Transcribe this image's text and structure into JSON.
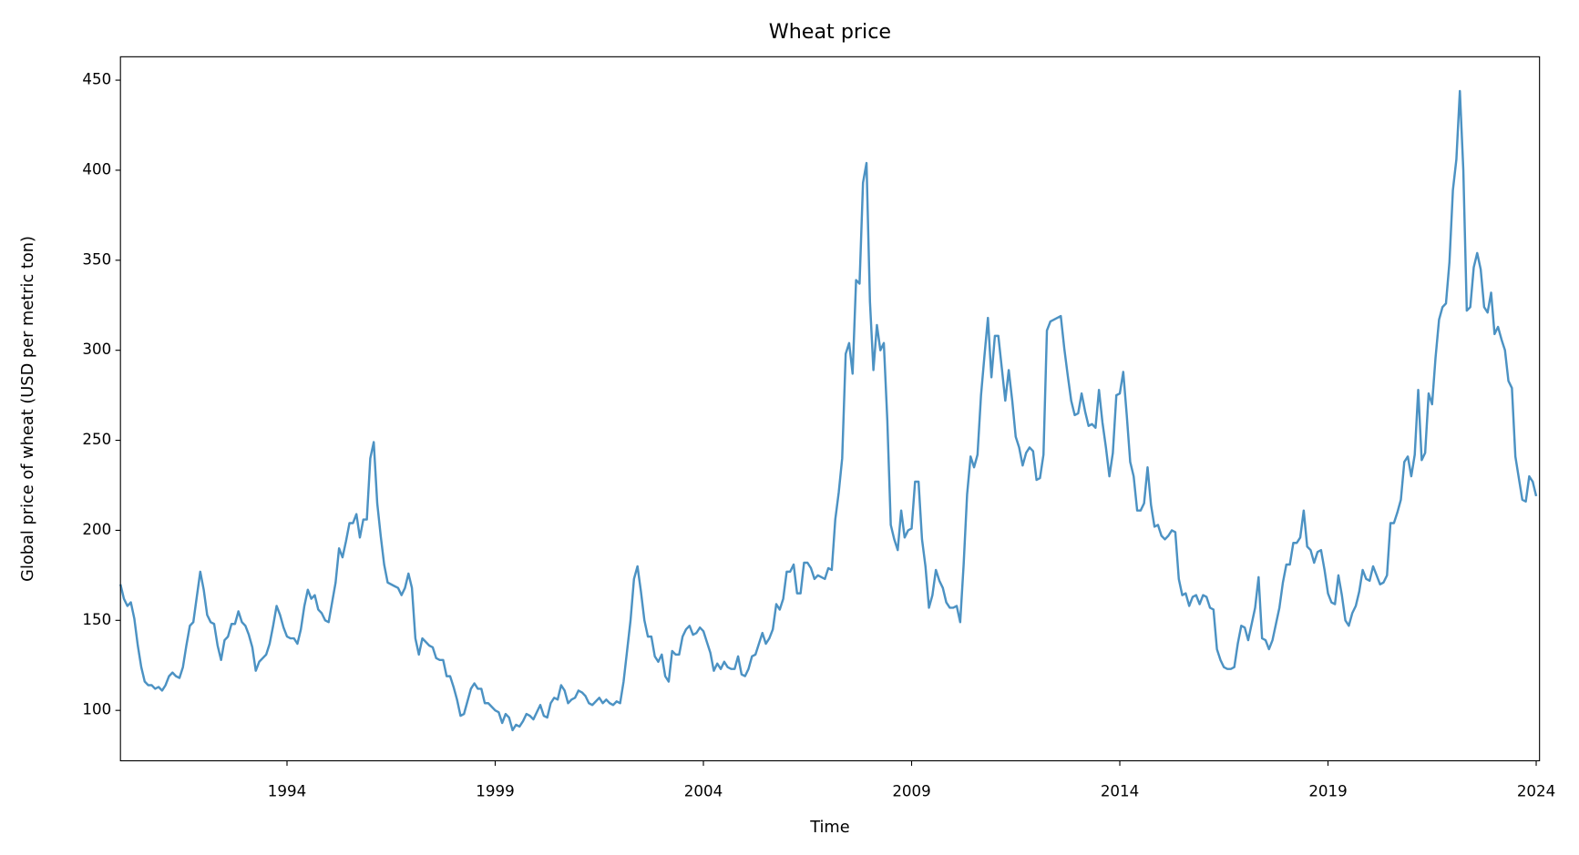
{
  "chart_data": {
    "type": "line",
    "title": "Wheat price",
    "x_label": "Time",
    "y_label": "Global price of wheat (USD per metric ton)",
    "xlim": [
      1990,
      2024.08
    ],
    "ylim": [
      72,
      463
    ],
    "xticks": [
      1994,
      1999,
      2004,
      2009,
      2014,
      2019,
      2024
    ],
    "yticks": [
      100,
      150,
      200,
      250,
      300,
      350,
      400,
      450
    ],
    "grid": false,
    "x": [
      1990,
      1990.083,
      1990.167,
      1990.25,
      1990.333,
      1990.417,
      1990.5,
      1990.583,
      1990.667,
      1990.75,
      1990.833,
      1990.917,
      1991,
      1991.083,
      1991.167,
      1991.25,
      1991.333,
      1991.417,
      1991.5,
      1991.583,
      1991.667,
      1991.75,
      1991.833,
      1991.917,
      1992,
      1992.083,
      1992.167,
      1992.25,
      1992.333,
      1992.417,
      1992.5,
      1992.583,
      1992.667,
      1992.75,
      1992.833,
      1992.917,
      1993,
      1993.083,
      1993.167,
      1993.25,
      1993.333,
      1993.417,
      1993.5,
      1993.583,
      1993.667,
      1993.75,
      1993.833,
      1993.917,
      1994,
      1994.083,
      1994.167,
      1994.25,
      1994.333,
      1994.417,
      1994.5,
      1994.583,
      1994.667,
      1994.75,
      1994.833,
      1994.917,
      1995,
      1995.083,
      1995.167,
      1995.25,
      1995.333,
      1995.417,
      1995.5,
      1995.583,
      1995.667,
      1995.75,
      1995.833,
      1995.917,
      1996,
      1996.083,
      1996.167,
      1996.25,
      1996.333,
      1996.417,
      1996.5,
      1996.583,
      1996.667,
      1996.75,
      1996.833,
      1996.917,
      1997,
      1997.083,
      1997.167,
      1997.25,
      1997.333,
      1997.417,
      1997.5,
      1997.583,
      1997.667,
      1997.75,
      1997.833,
      1997.917,
      1998,
      1998.083,
      1998.167,
      1998.25,
      1998.333,
      1998.417,
      1998.5,
      1998.583,
      1998.667,
      1998.75,
      1998.833,
      1998.917,
      1999,
      1999.083,
      1999.167,
      1999.25,
      1999.333,
      1999.417,
      1999.5,
      1999.583,
      1999.667,
      1999.75,
      1999.833,
      1999.917,
      2000,
      2000.083,
      2000.167,
      2000.25,
      2000.333,
      2000.417,
      2000.5,
      2000.583,
      2000.667,
      2000.75,
      2000.833,
      2000.917,
      2001,
      2001.083,
      2001.167,
      2001.25,
      2001.333,
      2001.417,
      2001.5,
      2001.583,
      2001.667,
      2001.75,
      2001.833,
      2001.917,
      2002,
      2002.083,
      2002.167,
      2002.25,
      2002.333,
      2002.417,
      2002.5,
      2002.583,
      2002.667,
      2002.75,
      2002.833,
      2002.917,
      2003,
      2003.083,
      2003.167,
      2003.25,
      2003.333,
      2003.417,
      2003.5,
      2003.583,
      2003.667,
      2003.75,
      2003.833,
      2003.917,
      2004,
      2004.083,
      2004.167,
      2004.25,
      2004.333,
      2004.417,
      2004.5,
      2004.583,
      2004.667,
      2004.75,
      2004.833,
      2004.917,
      2005,
      2005.083,
      2005.167,
      2005.25,
      2005.333,
      2005.417,
      2005.5,
      2005.583,
      2005.667,
      2005.75,
      2005.833,
      2005.917,
      2006,
      2006.083,
      2006.167,
      2006.25,
      2006.333,
      2006.417,
      2006.5,
      2006.583,
      2006.667,
      2006.75,
      2006.833,
      2006.917,
      2007,
      2007.083,
      2007.167,
      2007.25,
      2007.333,
      2007.417,
      2007.5,
      2007.583,
      2007.667,
      2007.75,
      2007.833,
      2007.917,
      2008,
      2008.083,
      2008.167,
      2008.25,
      2008.333,
      2008.417,
      2008.5,
      2008.583,
      2008.667,
      2008.75,
      2008.833,
      2008.917,
      2009,
      2009.083,
      2009.167,
      2009.25,
      2009.333,
      2009.417,
      2009.5,
      2009.583,
      2009.667,
      2009.75,
      2009.833,
      2009.917,
      2010,
      2010.083,
      2010.167,
      2010.25,
      2010.333,
      2010.417,
      2010.5,
      2010.583,
      2010.667,
      2010.75,
      2010.833,
      2010.917,
      2011,
      2011.083,
      2011.167,
      2011.25,
      2011.333,
      2011.417,
      2011.5,
      2011.583,
      2011.667,
      2011.75,
      2011.833,
      2011.917,
      2012,
      2012.083,
      2012.167,
      2012.25,
      2012.333,
      2012.417,
      2012.5,
      2012.583,
      2012.667,
      2012.75,
      2012.833,
      2012.917,
      2013,
      2013.083,
      2013.167,
      2013.25,
      2013.333,
      2013.417,
      2013.5,
      2013.583,
      2013.667,
      2013.75,
      2013.833,
      2013.917,
      2014,
      2014.083,
      2014.167,
      2014.25,
      2014.333,
      2014.417,
      2014.5,
      2014.583,
      2014.667,
      2014.75,
      2014.833,
      2014.917,
      2015,
      2015.083,
      2015.167,
      2015.25,
      2015.333,
      2015.417,
      2015.5,
      2015.583,
      2015.667,
      2015.75,
      2015.833,
      2015.917,
      2016,
      2016.083,
      2016.167,
      2016.25,
      2016.333,
      2016.417,
      2016.5,
      2016.583,
      2016.667,
      2016.75,
      2016.833,
      2016.917,
      2017,
      2017.083,
      2017.167,
      2017.25,
      2017.333,
      2017.417,
      2017.5,
      2017.583,
      2017.667,
      2017.75,
      2017.833,
      2017.917,
      2018,
      2018.083,
      2018.167,
      2018.25,
      2018.333,
      2018.417,
      2018.5,
      2018.583,
      2018.667,
      2018.75,
      2018.833,
      2018.917,
      2019,
      2019.083,
      2019.167,
      2019.25,
      2019.333,
      2019.417,
      2019.5,
      2019.583,
      2019.667,
      2019.75,
      2019.833,
      2019.917,
      2020,
      2020.083,
      2020.167,
      2020.25,
      2020.333,
      2020.417,
      2020.5,
      2020.583,
      2020.667,
      2020.75,
      2020.833,
      2020.917,
      2021,
      2021.083,
      2021.167,
      2021.25,
      2021.333,
      2021.417,
      2021.5,
      2021.583,
      2021.667,
      2021.75,
      2021.833,
      2021.917,
      2022,
      2022.083,
      2022.167,
      2022.25,
      2022.333,
      2022.417,
      2022.5,
      2022.583,
      2022.667,
      2022.75,
      2022.833,
      2022.917,
      2023,
      2023.083,
      2023.167,
      2023.25,
      2023.333,
      2023.417,
      2023.5,
      2023.583,
      2023.667,
      2023.75,
      2023.833,
      2023.917,
      2024
    ],
    "series": [
      {
        "color": "#1f77b4",
        "values": [
          170,
          162,
          158,
          160,
          151,
          136,
          124,
          116,
          114,
          114,
          112,
          113,
          111,
          114,
          119,
          121,
          119,
          118,
          124,
          136,
          147,
          149,
          163,
          177,
          167,
          153,
          149,
          148,
          136,
          128,
          139,
          141,
          148,
          148,
          155,
          149,
          147,
          142,
          135,
          122,
          127,
          129,
          131,
          137,
          147,
          158,
          153,
          146,
          141,
          140,
          140,
          137,
          145,
          158,
          167,
          162,
          164,
          156,
          154,
          150,
          149,
          160,
          171,
          190,
          185,
          194,
          204,
          204,
          209,
          196,
          206,
          206,
          240,
          249,
          215,
          197,
          181,
          171,
          170,
          169,
          168,
          164,
          168,
          176,
          168,
          140,
          131,
          140,
          138,
          136,
          135,
          129,
          128,
          128,
          119,
          119,
          113,
          106,
          97,
          98,
          105,
          112,
          115,
          112,
          112,
          104,
          104,
          102,
          100,
          99,
          93,
          98,
          96,
          89,
          92,
          91,
          94,
          98,
          97,
          95,
          99,
          103,
          97,
          96,
          104,
          107,
          106,
          114,
          111,
          104,
          106,
          107,
          111,
          110,
          108,
          104,
          103,
          105,
          107,
          104,
          106,
          104,
          103,
          105,
          104,
          116,
          133,
          150,
          173,
          180,
          166,
          150,
          141,
          141,
          130,
          127,
          131,
          119,
          116,
          133,
          131,
          131,
          141,
          145,
          147,
          142,
          143,
          146,
          144,
          138,
          132,
          122,
          126,
          123,
          127,
          124,
          123,
          123,
          130,
          120,
          119,
          123,
          130,
          131,
          137,
          143,
          137,
          140,
          145,
          159,
          156,
          162,
          177,
          177,
          181,
          165,
          165,
          182,
          182,
          179,
          173,
          175,
          174,
          173,
          179,
          178,
          206,
          221,
          240,
          298,
          304,
          287,
          339,
          337,
          393,
          404,
          327,
          289,
          314,
          300,
          304,
          261,
          203,
          195,
          189,
          211,
          196,
          200,
          201,
          227,
          227,
          195,
          180,
          157,
          164,
          178,
          172,
          168,
          160,
          157,
          157,
          158,
          149,
          181,
          220,
          241,
          235,
          242,
          275,
          297,
          318,
          285,
          308,
          308,
          290,
          272,
          289,
          272,
          252,
          246,
          236,
          243,
          246,
          244,
          228,
          229,
          242,
          311,
          316,
          317,
          318,
          319,
          301,
          286,
          272,
          264,
          265,
          276,
          266,
          258,
          259,
          257,
          278,
          260,
          246,
          230,
          243,
          275,
          276,
          288,
          264,
          238,
          230,
          211,
          211,
          215,
          235,
          214,
          202,
          203,
          197,
          195,
          197,
          200,
          199,
          173,
          164,
          165,
          158,
          163,
          164,
          159,
          164,
          163,
          157,
          156,
          134,
          128,
          124,
          123,
          123,
          124,
          137,
          147,
          146,
          139,
          148,
          157,
          174,
          140,
          139,
          134,
          139,
          148,
          157,
          171,
          181,
          181,
          193,
          193,
          196,
          211,
          191,
          189,
          182,
          188,
          189,
          178,
          165,
          160,
          159,
          175,
          164,
          150,
          147,
          154,
          158,
          166,
          178,
          173,
          172,
          180,
          175,
          170,
          171,
          175,
          204,
          204,
          210,
          217,
          238,
          241,
          230,
          242,
          278,
          239,
          243,
          276,
          270,
          296,
          317,
          324,
          326,
          349,
          389,
          406,
          444,
          400,
          322,
          324,
          346,
          354,
          345,
          324,
          321,
          332,
          309,
          313,
          306,
          300,
          283,
          279,
          241,
          229,
          217,
          216,
          230,
          227,
          219
        ]
      }
    ]
  }
}
